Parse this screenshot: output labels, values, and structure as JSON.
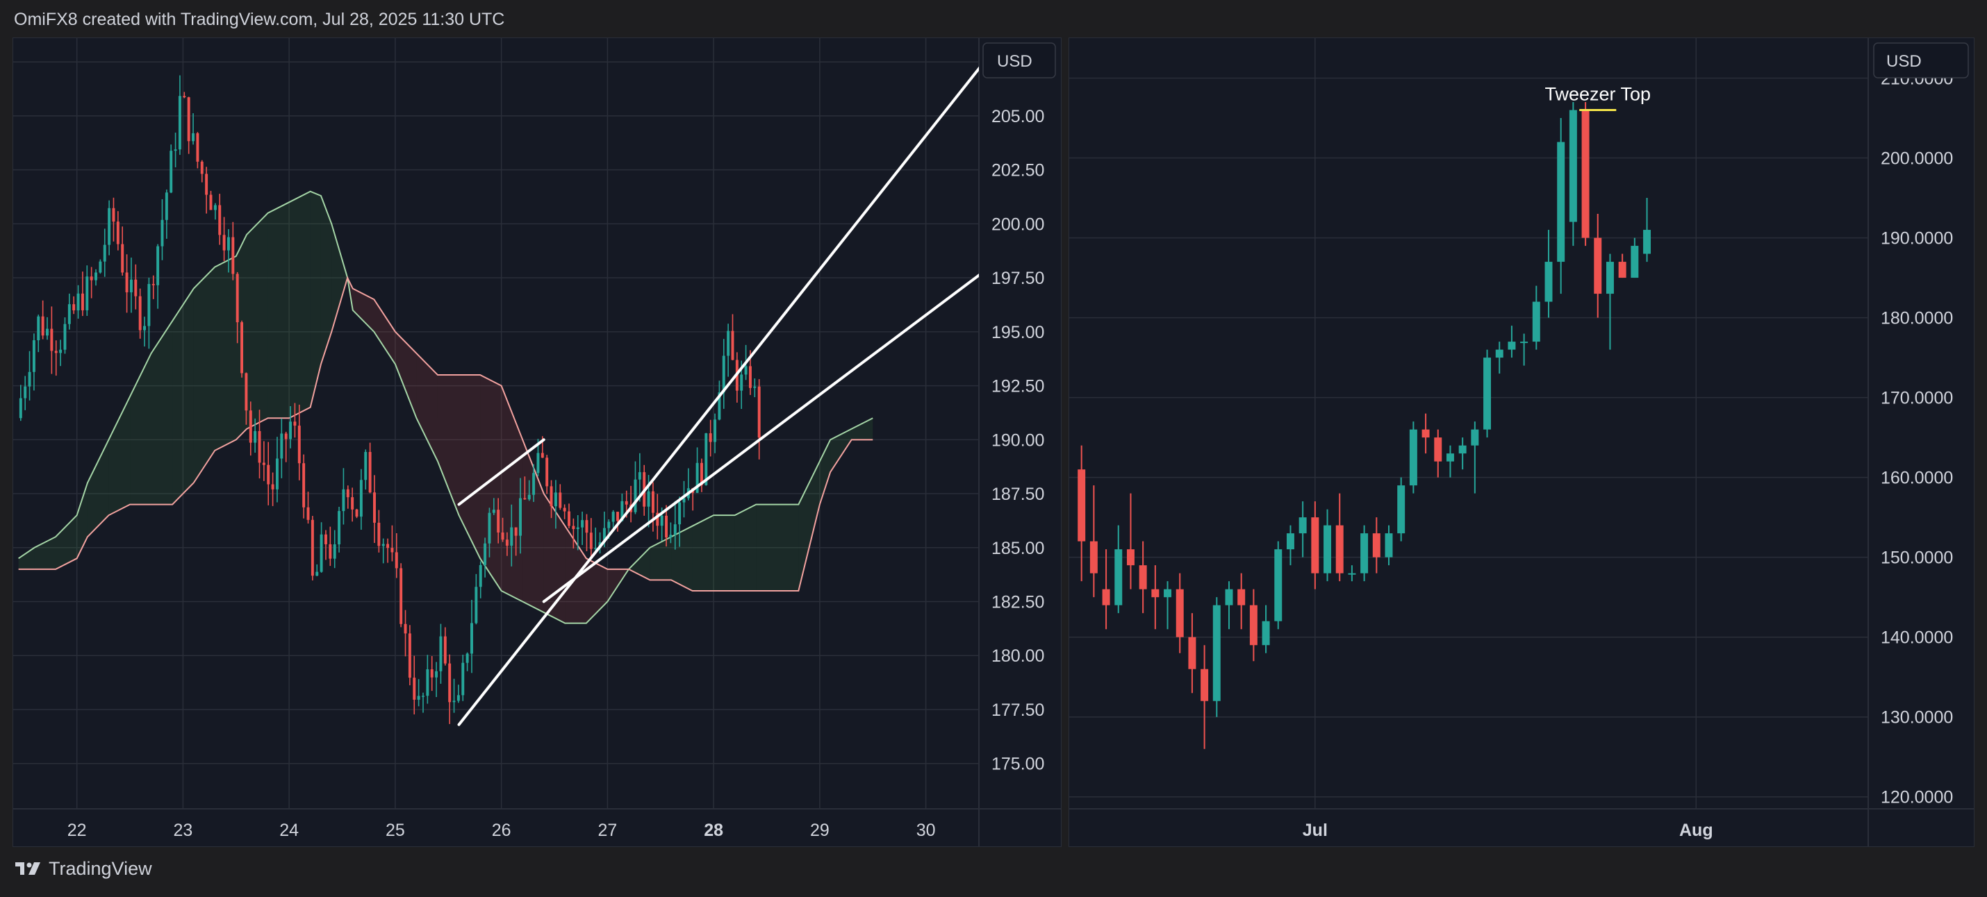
{
  "header": {
    "attribution": "OmiFX8 created with TradingView.com, Jul 28, 2025 11:30 UTC"
  },
  "footer": {
    "brand": "TradingView"
  },
  "colors": {
    "up": "#26a69a",
    "down": "#ef5350",
    "background": "#151924",
    "grid": "#2a2e39",
    "text": "#d1d4dc",
    "annotation_line": "#f5e54a",
    "trendline": "#ffffff",
    "cloud_green_line": "#a5d6a7",
    "cloud_red_line": "#f4a3a0"
  },
  "icons": {
    "footer_logo": "tradingview-logo-icon"
  },
  "chart_data": [
    {
      "type": "candlestick",
      "interval": "intraday (hourly)",
      "currency_label": "USD",
      "x_ticks": [
        "22",
        "23",
        "24",
        "25",
        "26",
        "27",
        "28",
        "29",
        "30"
      ],
      "x_tick_bold": "28",
      "x_range": [
        21.4,
        30.5
      ],
      "y_ticks": [
        "175.00",
        "177.50",
        "180.00",
        "182.50",
        "185.00",
        "187.50",
        "190.00",
        "192.50",
        "195.00",
        "197.50",
        "200.00",
        "202.50",
        "205.00",
        "207.50"
      ],
      "ylim": [
        172.9,
        208.6
      ],
      "grid": true,
      "indicators": [
        "Ichimoku Cloud"
      ],
      "price_path": [
        [
          21.45,
          191.0
        ],
        [
          21.65,
          195.5
        ],
        [
          21.85,
          194.5
        ],
        [
          22.05,
          196.5
        ],
        [
          22.2,
          197.5
        ],
        [
          22.35,
          200.5
        ],
        [
          22.5,
          197.0
        ],
        [
          22.65,
          195.5
        ],
        [
          22.8,
          199.5
        ],
        [
          22.95,
          204.0
        ],
        [
          23.0,
          206.0
        ],
        [
          23.15,
          203.0
        ],
        [
          23.3,
          201.0
        ],
        [
          23.45,
          199.0
        ],
        [
          23.55,
          195.0
        ],
        [
          23.65,
          190.0
        ],
        [
          23.75,
          189.5
        ],
        [
          23.85,
          187.5
        ],
        [
          23.95,
          189.5
        ],
        [
          24.05,
          191.0
        ],
        [
          24.15,
          188.0
        ],
        [
          24.25,
          183.0
        ],
        [
          24.35,
          185.5
        ],
        [
          24.45,
          184.5
        ],
        [
          24.55,
          188.5
        ],
        [
          24.65,
          186.5
        ],
        [
          24.75,
          189.0
        ],
        [
          24.85,
          186.0
        ],
        [
          24.95,
          185.0
        ],
        [
          25.05,
          183.0
        ],
        [
          25.15,
          179.5
        ],
        [
          25.25,
          177.5
        ],
        [
          25.35,
          179.0
        ],
        [
          25.45,
          180.5
        ],
        [
          25.55,
          178.0
        ],
        [
          25.6,
          177.0
        ],
        [
          25.7,
          180.5
        ],
        [
          25.8,
          183.5
        ],
        [
          25.9,
          186.5
        ],
        [
          26.0,
          186.5
        ],
        [
          26.1,
          185.5
        ],
        [
          26.2,
          186.5
        ],
        [
          26.3,
          188.0
        ],
        [
          26.4,
          189.0
        ],
        [
          26.5,
          187.5
        ],
        [
          26.6,
          187.5
        ],
        [
          26.7,
          186.0
        ],
        [
          26.8,
          186.0
        ],
        [
          26.9,
          185.0
        ],
        [
          27.0,
          185.5
        ],
        [
          27.1,
          186.5
        ],
        [
          27.2,
          187.0
        ],
        [
          27.3,
          188.0
        ],
        [
          27.4,
          187.0
        ],
        [
          27.5,
          186.5
        ],
        [
          27.6,
          186.0
        ],
        [
          27.7,
          187.5
        ],
        [
          27.8,
          188.0
        ],
        [
          27.9,
          188.5
        ],
        [
          28.0,
          190.5
        ],
        [
          28.08,
          193.0
        ],
        [
          28.15,
          194.5
        ],
        [
          28.22,
          193.0
        ],
        [
          28.3,
          192.5
        ],
        [
          28.38,
          193.0
        ],
        [
          28.45,
          190.5
        ]
      ],
      "ichimoku_green_line": [
        [
          21.45,
          184.5
        ],
        [
          21.6,
          185.0
        ],
        [
          21.8,
          185.5
        ],
        [
          22.0,
          186.5
        ],
        [
          22.1,
          188.0
        ],
        [
          22.3,
          190.0
        ],
        [
          22.5,
          192.0
        ],
        [
          22.7,
          194.0
        ],
        [
          22.9,
          195.5
        ],
        [
          23.1,
          197.0
        ],
        [
          23.3,
          198.0
        ],
        [
          23.5,
          198.5
        ],
        [
          23.6,
          199.5
        ],
        [
          23.8,
          200.5
        ],
        [
          24.0,
          201.0
        ],
        [
          24.2,
          201.5
        ],
        [
          24.3,
          201.3
        ],
        [
          24.4,
          200.0
        ],
        [
          24.55,
          197.5
        ],
        [
          24.6,
          196.0
        ],
        [
          24.8,
          195.0
        ],
        [
          25.0,
          193.5
        ],
        [
          25.2,
          191.0
        ],
        [
          25.4,
          189.0
        ],
        [
          25.6,
          186.5
        ],
        [
          25.8,
          184.5
        ],
        [
          26.0,
          183.0
        ],
        [
          26.2,
          182.5
        ],
        [
          26.4,
          182.0
        ],
        [
          26.6,
          181.5
        ],
        [
          26.8,
          181.5
        ],
        [
          27.0,
          182.5
        ],
        [
          27.2,
          184.0
        ],
        [
          27.4,
          185.0
        ],
        [
          27.6,
          185.5
        ],
        [
          27.8,
          186.0
        ],
        [
          28.0,
          186.5
        ],
        [
          28.2,
          186.5
        ],
        [
          28.4,
          187.0
        ],
        [
          28.6,
          187.0
        ],
        [
          28.8,
          187.0
        ],
        [
          28.9,
          188.0
        ],
        [
          29.0,
          189.0
        ],
        [
          29.1,
          190.0
        ],
        [
          29.3,
          190.5
        ],
        [
          29.5,
          191.0
        ]
      ],
      "ichimoku_red_line": [
        [
          21.45,
          184.0
        ],
        [
          21.6,
          184.0
        ],
        [
          21.8,
          184.0
        ],
        [
          22.0,
          184.5
        ],
        [
          22.1,
          185.5
        ],
        [
          22.3,
          186.5
        ],
        [
          22.5,
          187.0
        ],
        [
          22.7,
          187.0
        ],
        [
          22.9,
          187.0
        ],
        [
          23.1,
          188.0
        ],
        [
          23.3,
          189.5
        ],
        [
          23.5,
          190.0
        ],
        [
          23.6,
          190.5
        ],
        [
          23.8,
          191.0
        ],
        [
          24.0,
          191.0
        ],
        [
          24.2,
          191.5
        ],
        [
          24.3,
          193.5
        ],
        [
          24.4,
          195.0
        ],
        [
          24.55,
          197.5
        ],
        [
          24.6,
          197.0
        ],
        [
          24.8,
          196.5
        ],
        [
          25.0,
          195.0
        ],
        [
          25.2,
          194.0
        ],
        [
          25.4,
          193.0
        ],
        [
          25.6,
          193.0
        ],
        [
          25.8,
          193.0
        ],
        [
          26.0,
          192.5
        ],
        [
          26.2,
          190.0
        ],
        [
          26.4,
          187.5
        ],
        [
          26.6,
          186.0
        ],
        [
          26.8,
          184.5
        ],
        [
          27.0,
          184.0
        ],
        [
          27.2,
          184.0
        ],
        [
          27.4,
          183.5
        ],
        [
          27.6,
          183.5
        ],
        [
          27.8,
          183.0
        ],
        [
          28.0,
          183.0
        ],
        [
          28.2,
          183.0
        ],
        [
          28.4,
          183.0
        ],
        [
          28.6,
          183.0
        ],
        [
          28.8,
          183.0
        ],
        [
          28.9,
          185.0
        ],
        [
          29.0,
          187.0
        ],
        [
          29.1,
          188.5
        ],
        [
          29.3,
          190.0
        ],
        [
          29.5,
          190.0
        ]
      ],
      "trendlines": [
        {
          "from": [
            25.6,
            176.8
          ],
          "to": [
            30.55,
            207.5
          ]
        },
        {
          "from": [
            25.6,
            187.0
          ],
          "to": [
            26.4,
            190.0
          ]
        },
        {
          "from": [
            26.4,
            182.5
          ],
          "to": [
            30.55,
            197.8
          ]
        }
      ]
    },
    {
      "type": "candlestick",
      "interval": "daily",
      "currency_label": "USD",
      "x_ticks": [
        {
          "label": "Jul",
          "day": 0
        },
        {
          "label": "Aug",
          "day": 31
        }
      ],
      "x_range": [
        -20,
        45
      ],
      "y_ticks": [
        "120.0000",
        "130.0000",
        "140.0000",
        "150.0000",
        "160.0000",
        "170.0000",
        "180.0000",
        "190.0000",
        "200.0000",
        "210.0000"
      ],
      "ylim": [
        118.5,
        215.0
      ],
      "grid": true,
      "annotation": {
        "text": "Tweezer Top",
        "price": 206.0,
        "day_from": 21.5,
        "day_to": 24.5
      },
      "candles": [
        {
          "day": -19,
          "open": 161.0,
          "high": 164.0,
          "low": 147.0,
          "close": 152.0
        },
        {
          "day": -18,
          "open": 152.0,
          "high": 159.0,
          "low": 145.0,
          "close": 148.0
        },
        {
          "day": -17,
          "open": 146.0,
          "high": 151.0,
          "low": 141.0,
          "close": 144.0
        },
        {
          "day": -16,
          "open": 144.0,
          "high": 154.0,
          "low": 143.0,
          "close": 151.0
        },
        {
          "day": -15,
          "open": 151.0,
          "high": 158.0,
          "low": 146.0,
          "close": 149.0
        },
        {
          "day": -14,
          "open": 149.0,
          "high": 152.0,
          "low": 143.0,
          "close": 146.0
        },
        {
          "day": -13,
          "open": 146.0,
          "high": 149.0,
          "low": 141.0,
          "close": 145.0
        },
        {
          "day": -12,
          "open": 145.0,
          "high": 147.0,
          "low": 141.0,
          "close": 146.0
        },
        {
          "day": -11,
          "open": 146.0,
          "high": 148.0,
          "low": 138.0,
          "close": 140.0
        },
        {
          "day": -10,
          "open": 140.0,
          "high": 143.0,
          "low": 133.0,
          "close": 136.0
        },
        {
          "day": -9,
          "open": 136.0,
          "high": 139.0,
          "low": 126.0,
          "close": 132.0
        },
        {
          "day": -8,
          "open": 132.0,
          "high": 145.0,
          "low": 130.0,
          "close": 144.0
        },
        {
          "day": -7,
          "open": 144.0,
          "high": 147.0,
          "low": 141.0,
          "close": 146.0
        },
        {
          "day": -6,
          "open": 146.0,
          "high": 148.0,
          "low": 141.0,
          "close": 144.0
        },
        {
          "day": -5,
          "open": 144.0,
          "high": 146.0,
          "low": 137.0,
          "close": 139.0
        },
        {
          "day": -4,
          "open": 139.0,
          "high": 144.0,
          "low": 138.0,
          "close": 142.0
        },
        {
          "day": -3,
          "open": 142.0,
          "high": 152.0,
          "low": 141.0,
          "close": 151.0
        },
        {
          "day": -2,
          "open": 151.0,
          "high": 154.0,
          "low": 149.0,
          "close": 153.0
        },
        {
          "day": -1,
          "open": 153.0,
          "high": 157.0,
          "low": 150.0,
          "close": 155.0
        },
        {
          "day": 0,
          "open": 155.0,
          "high": 157.0,
          "low": 146.0,
          "close": 148.0
        },
        {
          "day": 1,
          "open": 148.0,
          "high": 156.0,
          "low": 147.0,
          "close": 154.0
        },
        {
          "day": 2,
          "open": 154.0,
          "high": 158.0,
          "low": 147.0,
          "close": 148.0
        },
        {
          "day": 3,
          "open": 148.0,
          "high": 149.0,
          "low": 147.0,
          "close": 148.0
        },
        {
          "day": 4,
          "open": 148.0,
          "high": 154.0,
          "low": 147.0,
          "close": 153.0
        },
        {
          "day": 5,
          "open": 153.0,
          "high": 155.0,
          "low": 148.0,
          "close": 150.0
        },
        {
          "day": 6,
          "open": 150.0,
          "high": 154.0,
          "low": 149.0,
          "close": 153.0
        },
        {
          "day": 7,
          "open": 153.0,
          "high": 160.0,
          "low": 152.0,
          "close": 159.0
        },
        {
          "day": 8,
          "open": 159.0,
          "high": 167.0,
          "low": 158.0,
          "close": 166.0
        },
        {
          "day": 9,
          "open": 166.0,
          "high": 168.0,
          "low": 163.0,
          "close": 165.0
        },
        {
          "day": 10,
          "open": 165.0,
          "high": 166.0,
          "low": 160.0,
          "close": 162.0
        },
        {
          "day": 11,
          "open": 162.0,
          "high": 164.0,
          "low": 160.0,
          "close": 163.0
        },
        {
          "day": 12,
          "open": 163.0,
          "high": 165.0,
          "low": 161.0,
          "close": 164.0
        },
        {
          "day": 13,
          "open": 164.0,
          "high": 167.0,
          "low": 158.0,
          "close": 166.0
        },
        {
          "day": 14,
          "open": 166.0,
          "high": 176.0,
          "low": 165.0,
          "close": 175.0
        },
        {
          "day": 15,
          "open": 175.0,
          "high": 177.0,
          "low": 173.0,
          "close": 176.0
        },
        {
          "day": 16,
          "open": 176.0,
          "high": 179.0,
          "low": 175.0,
          "close": 177.0
        },
        {
          "day": 17,
          "open": 177.0,
          "high": 178.0,
          "low": 174.0,
          "close": 177.0
        },
        {
          "day": 18,
          "open": 177.0,
          "high": 184.0,
          "low": 176.0,
          "close": 182.0
        },
        {
          "day": 19,
          "open": 182.0,
          "high": 191.0,
          "low": 180.0,
          "close": 187.0
        },
        {
          "day": 20,
          "open": 187.0,
          "high": 205.0,
          "low": 183.0,
          "close": 202.0
        },
        {
          "day": 21,
          "open": 192.0,
          "high": 207.0,
          "low": 189.0,
          "close": 206.0
        },
        {
          "day": 22,
          "open": 206.0,
          "high": 207.0,
          "low": 189.0,
          "close": 190.0
        },
        {
          "day": 23,
          "open": 190.0,
          "high": 193.0,
          "low": 180.0,
          "close": 183.0
        },
        {
          "day": 24,
          "open": 183.0,
          "high": 188.0,
          "low": 176.0,
          "close": 187.0
        },
        {
          "day": 25,
          "open": 187.0,
          "high": 188.0,
          "low": 185.0,
          "close": 185.0
        },
        {
          "day": 26,
          "open": 185.0,
          "high": 190.0,
          "low": 185.0,
          "close": 189.0
        },
        {
          "day": 27,
          "open": 188.0,
          "high": 195.0,
          "low": 187.0,
          "close": 191.0
        }
      ]
    }
  ]
}
